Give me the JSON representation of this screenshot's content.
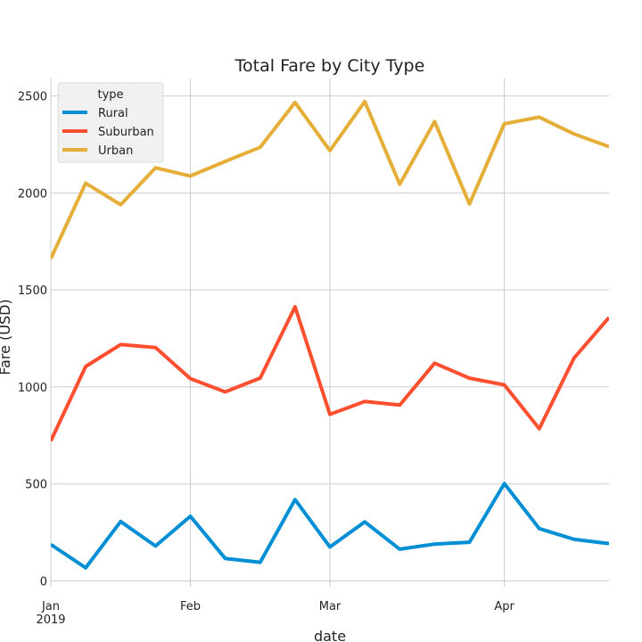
{
  "chart_data": {
    "type": "line",
    "title": "Total Fare by City Type",
    "xlabel": "date",
    "ylabel": "Fare (USD)",
    "x": [
      "2019-01-06",
      "2019-01-13",
      "2019-01-20",
      "2019-01-27",
      "2019-02-03",
      "2019-02-10",
      "2019-02-17",
      "2019-02-24",
      "2019-03-03",
      "2019-03-10",
      "2019-03-17",
      "2019-03-24",
      "2019-03-31",
      "2019-04-07",
      "2019-04-14",
      "2019-04-21",
      "2019-04-28"
    ],
    "xlim": [
      "2019-01-06",
      "2019-04-28"
    ],
    "ylim": [
      -30,
      2590
    ],
    "y_ticks": [
      0,
      500,
      1000,
      1500,
      2000,
      2500
    ],
    "x_ticks": [
      {
        "date": "2019-01-06",
        "label": "Jan",
        "sublabel": "2019"
      },
      {
        "date": "2019-02-03",
        "label": "Feb",
        "sublabel": ""
      },
      {
        "date": "2019-03-03",
        "label": "Mar",
        "sublabel": ""
      },
      {
        "date": "2019-04-07",
        "label": "Apr",
        "sublabel": ""
      }
    ],
    "grid": true,
    "legend": {
      "title": "type",
      "placement": "top-left"
    },
    "series": [
      {
        "name": "Rural",
        "color": "#008fd5",
        "values": [
          187.92,
          67.65,
          306.22,
          179.48,
          333.08,
          115.8,
          95.82,
          419.06,
          175.14,
          303.94,
          163.39,
          189.76,
          199.42,
          501.24,
          269.79,
          214.14,
          191.85
        ]
      },
      {
        "name": "Suburban",
        "color": "#fc4f30",
        "values": [
          721.6,
          1105.13,
          1218.2,
          1203.28,
          1042.79,
          974.34,
          1045.5,
          1412.74,
          858.46,
          925.27,
          906.2,
          1122.2,
          1045.06,
          1010.73,
          784.82,
          1149.27,
          1357.75
        ]
      },
      {
        "name": "Urban",
        "color": "#e5ae38",
        "values": [
          1661.68,
          2050.43,
          1939.02,
          2129.51,
          2086.94,
          2162.64,
          2235.07,
          2466.29,
          2218.2,
          2470.93,
          2044.42,
          2368.37,
          1942.77,
          2356.7,
          2390.72,
          2303.8,
          2238.29
        ]
      }
    ]
  }
}
